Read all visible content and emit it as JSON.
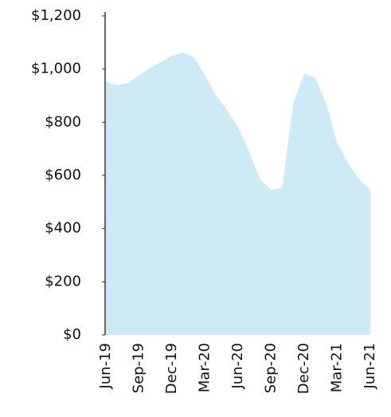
{
  "chart_data": {
    "type": "area",
    "categories": [
      "Jun-19",
      null,
      null,
      "Sep-19",
      null,
      null,
      "Dec-19",
      null,
      null,
      "Mar-20",
      null,
      null,
      "Jun-20",
      null,
      null,
      "Sep-20",
      null,
      null,
      "Dec-20",
      null,
      null,
      "Mar-21",
      null,
      null,
      "Jun-21"
    ],
    "values": [
      954,
      939,
      948,
      975,
      1005,
      1026,
      1050,
      1062,
      1044,
      975,
      900,
      846,
      780,
      690,
      585,
      546,
      552,
      870,
      984,
      966,
      870,
      720,
      645,
      585,
      546
    ],
    "color": "#cdeaf7",
    "ylim": [
      0,
      1200
    ],
    "yticks": [
      {
        "value": 0,
        "label": "$0"
      },
      {
        "value": 200,
        "label": "$200"
      },
      {
        "value": 400,
        "label": "$400"
      },
      {
        "value": 600,
        "label": "$600"
      },
      {
        "value": 800,
        "label": "$800"
      },
      {
        "value": 1000,
        "label": "$1,000"
      },
      {
        "value": 1200,
        "label": "$1,200"
      }
    ],
    "grid": false
  }
}
